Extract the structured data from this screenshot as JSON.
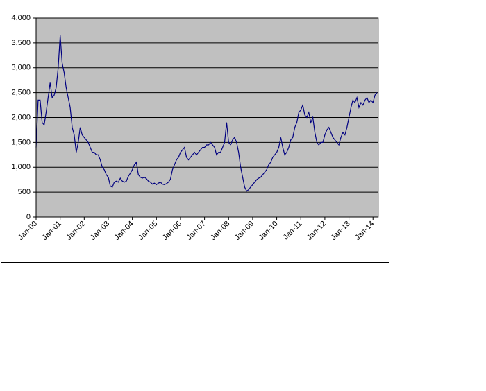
{
  "chart_data": {
    "type": "line",
    "categories": [
      "Jan-00",
      null,
      null,
      null,
      null,
      null,
      null,
      null,
      null,
      null,
      null,
      null,
      "Jan-01",
      null,
      null,
      null,
      null,
      null,
      null,
      null,
      null,
      null,
      null,
      null,
      "Jan-02",
      null,
      null,
      null,
      null,
      null,
      null,
      null,
      null,
      null,
      null,
      null,
      "Jan-03",
      null,
      null,
      null,
      null,
      null,
      null,
      null,
      null,
      null,
      null,
      null,
      "Jan-04",
      null,
      null,
      null,
      null,
      null,
      null,
      null,
      null,
      null,
      null,
      null,
      "Jan-05",
      null,
      null,
      null,
      null,
      null,
      null,
      null,
      null,
      null,
      null,
      null,
      "Jan-06",
      null,
      null,
      null,
      null,
      null,
      null,
      null,
      null,
      null,
      null,
      null,
      "Jan-07",
      null,
      null,
      null,
      null,
      null,
      null,
      null,
      null,
      null,
      null,
      null,
      "Jan-08",
      null,
      null,
      null,
      null,
      null,
      null,
      null,
      null,
      null,
      null,
      null,
      "Jan-09",
      null,
      null,
      null,
      null,
      null,
      null,
      null,
      null,
      null,
      null,
      null,
      "Jan-10",
      null,
      null,
      null,
      null,
      null,
      null,
      null,
      null,
      null,
      null,
      null,
      "Jan-11",
      null,
      null,
      null,
      null,
      null,
      null,
      null,
      null,
      null,
      null,
      null,
      "Jan-12",
      null,
      null,
      null,
      null,
      null,
      null,
      null,
      null,
      null,
      null,
      null,
      "Jan-13",
      null,
      null,
      null,
      null,
      null,
      null,
      null,
      null,
      null,
      null,
      null,
      "Jan-14",
      null,
      null
    ],
    "values": [
      1400,
      2350,
      2350,
      1900,
      1850,
      2100,
      2400,
      2700,
      2400,
      2450,
      2600,
      3000,
      3650,
      3100,
      2900,
      2600,
      2400,
      2200,
      1800,
      1650,
      1300,
      1500,
      1800,
      1650,
      1600,
      1550,
      1500,
      1400,
      1300,
      1300,
      1250,
      1250,
      1150,
      1000,
      950,
      850,
      800,
      620,
      600,
      700,
      720,
      700,
      780,
      720,
      700,
      720,
      820,
      880,
      950,
      1050,
      1100,
      850,
      800,
      780,
      800,
      770,
      720,
      700,
      660,
      680,
      650,
      680,
      700,
      660,
      650,
      670,
      700,
      760,
      950,
      1050,
      1150,
      1200,
      1300,
      1350,
      1400,
      1200,
      1150,
      1200,
      1250,
      1300,
      1250,
      1300,
      1350,
      1400,
      1400,
      1450,
      1450,
      1500,
      1450,
      1400,
      1250,
      1300,
      1300,
      1400,
      1500,
      1900,
      1500,
      1450,
      1550,
      1600,
      1500,
      1300,
      1000,
      800,
      600,
      520,
      550,
      600,
      650,
      700,
      750,
      780,
      800,
      850,
      900,
      950,
      1050,
      1100,
      1200,
      1250,
      1300,
      1400,
      1600,
      1400,
      1250,
      1300,
      1400,
      1550,
      1600,
      1800,
      1900,
      2100,
      2150,
      2250,
      2050,
      2000,
      2100,
      1900,
      2000,
      1700,
      1500,
      1450,
      1500,
      1500,
      1650,
      1750,
      1800,
      1700,
      1600,
      1550,
      1500,
      1450,
      1600,
      1700,
      1650,
      1800,
      2000,
      2200,
      2350,
      2300,
      2400,
      2200,
      2300,
      2250,
      2350,
      2400,
      2300,
      2350,
      2300,
      2450,
      2500
    ],
    "color": "#000080",
    "ylim": [
      0,
      4000
    ],
    "yticks": [
      0,
      500,
      {
        "value": 1000,
        "label": "1,000"
      },
      {
        "value": 1500,
        "label": "1,500"
      },
      {
        "value": 2000,
        "label": "2,000"
      },
      {
        "value": 2500,
        "label": "2,500"
      },
      {
        "value": 3000,
        "label": "3,000"
      },
      {
        "value": 3500,
        "label": "3,500"
      },
      {
        "value": 4000,
        "label": "4,000"
      }
    ],
    "grid": true
  }
}
